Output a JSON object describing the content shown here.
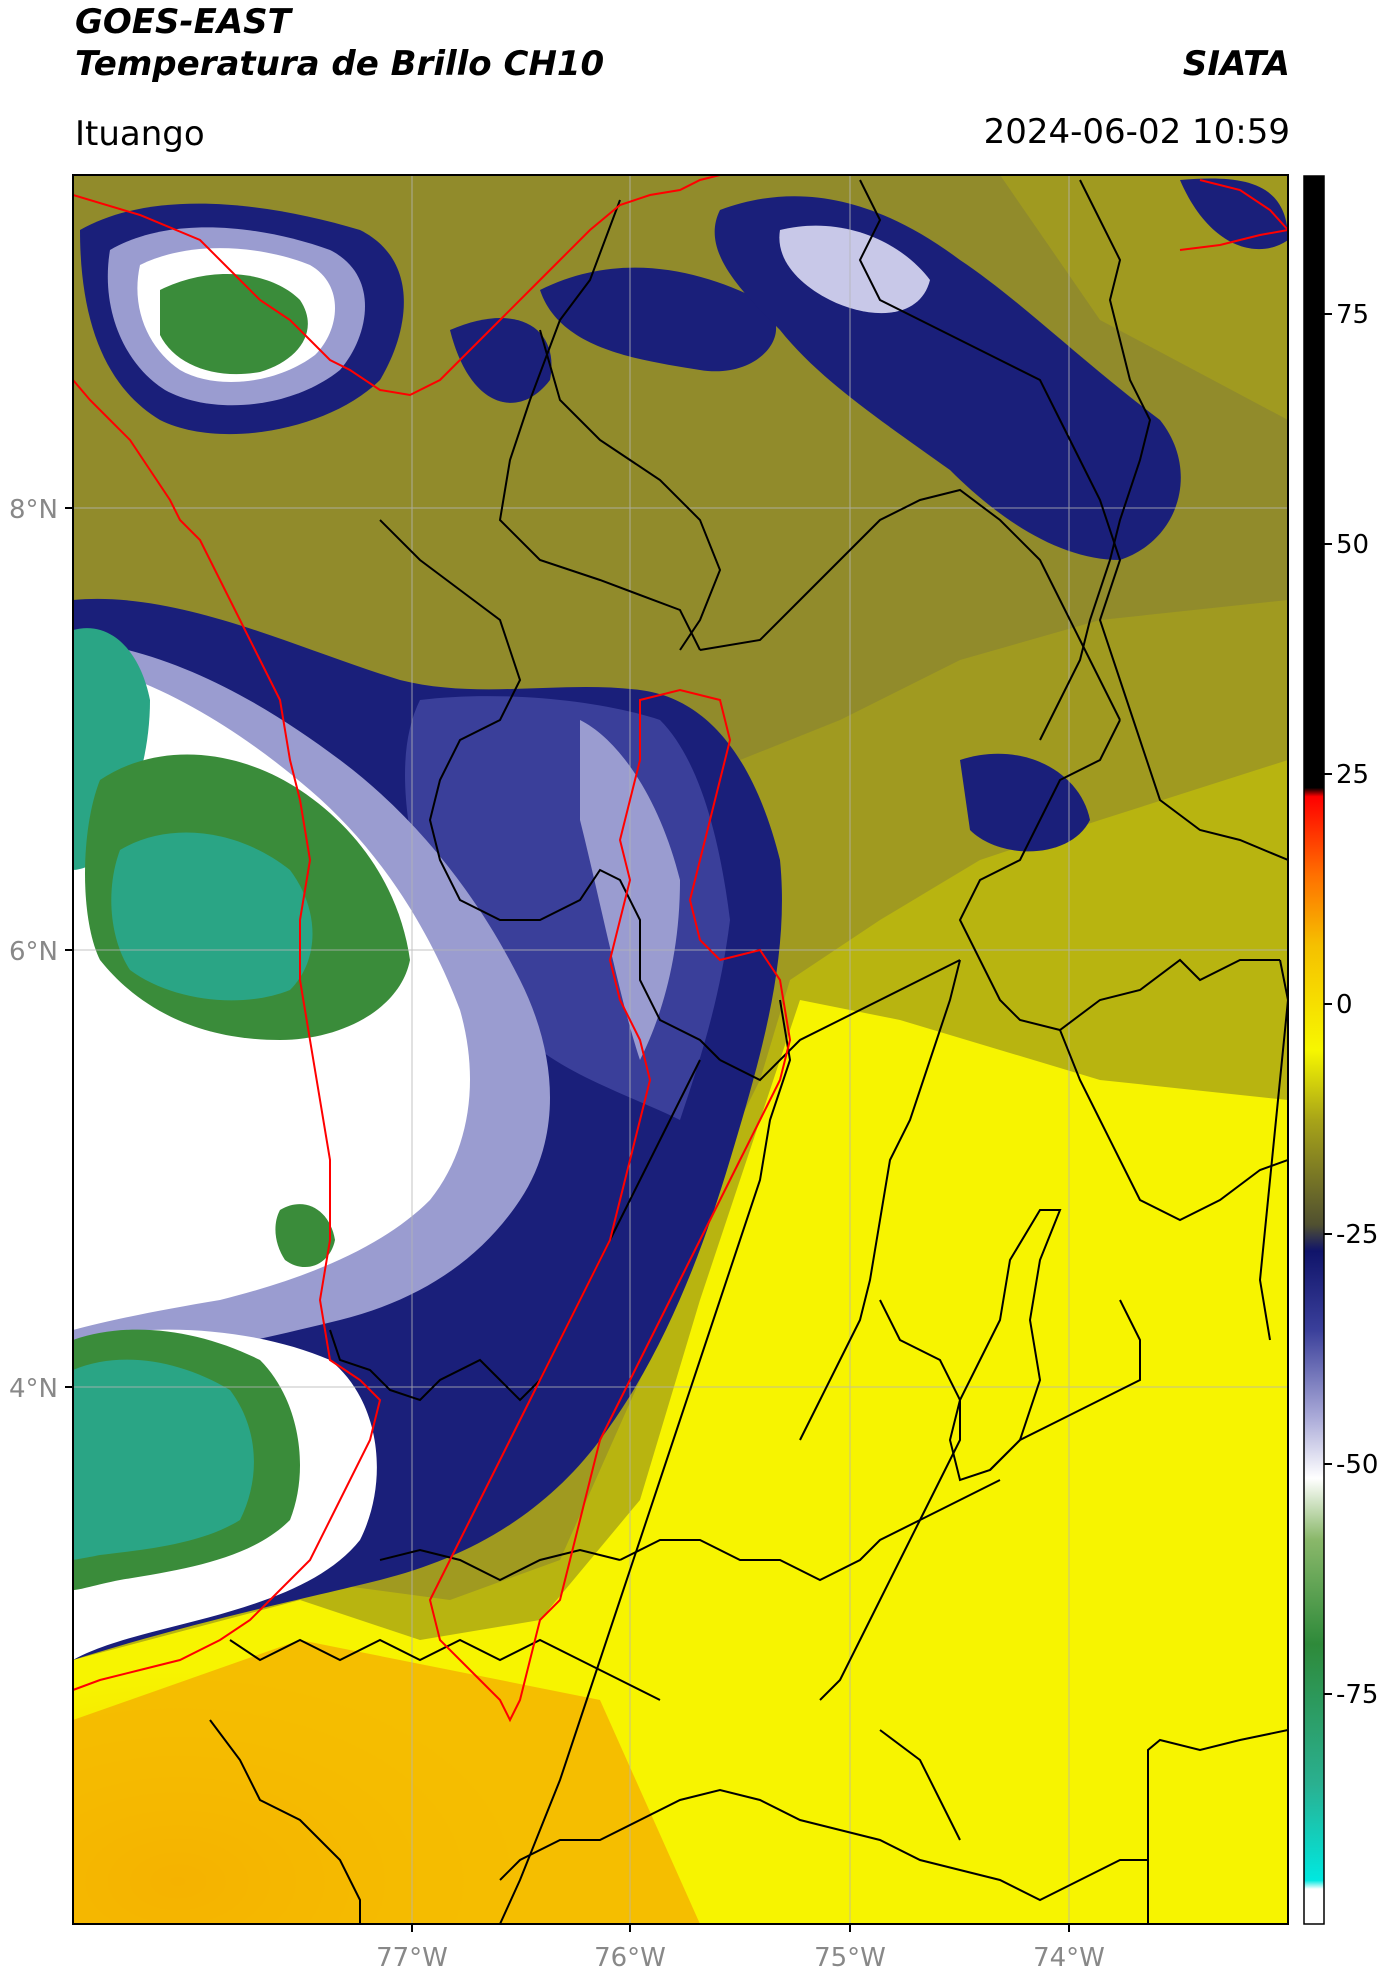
{
  "header": {
    "satellite": "GOES-EAST",
    "product": "Temperatura de Brillo CH10",
    "brand": "SIATA",
    "location": "Ituango",
    "datetime": "2024-06-02 10:59"
  },
  "map": {
    "lat_labels": [
      "8°N",
      "6°N",
      "4°N"
    ],
    "lon_labels": [
      "77°W",
      "76°W",
      "75°W",
      "74°W"
    ],
    "colors": {
      "warm_orange": "#f5b000",
      "yellow": "#f7f700",
      "olive": "#a8a418",
      "dark_olive": "#6e6a30",
      "navy": "#1a1f7a",
      "lavender": "#9a9cd0",
      "white": "#ffffff",
      "green": "#3a8c3a",
      "teal": "#2aa585",
      "border_red": "#ff0000",
      "border_black": "#000000",
      "grid": "#b0b0b0"
    }
  },
  "colorbar": {
    "ticks": [
      "75",
      "50",
      "25",
      "0",
      "-25",
      "-50",
      "-75"
    ],
    "tick_values": [
      75,
      50,
      25,
      0,
      -25,
      -50,
      -75
    ],
    "range": [
      -100,
      90
    ]
  }
}
